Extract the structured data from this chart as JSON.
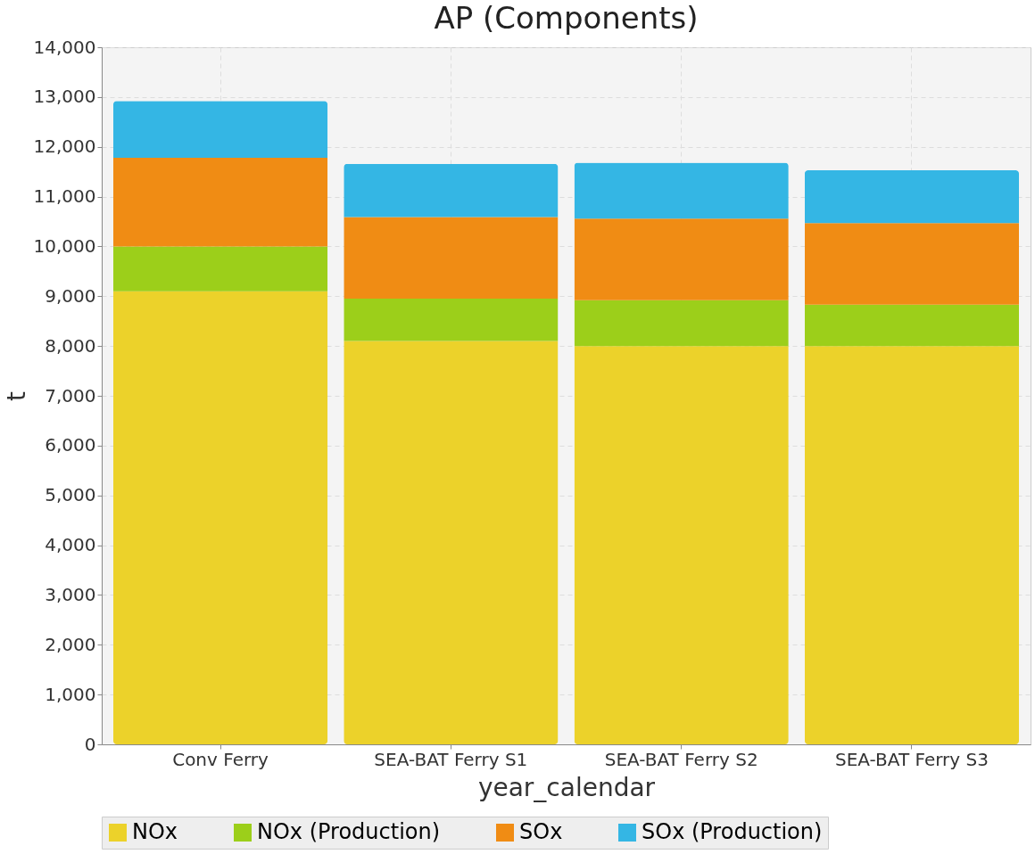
{
  "chart_data": {
    "type": "bar",
    "title": "AP (Components)",
    "xlabel": "year_calendar",
    "ylabel": "t",
    "stacked": true,
    "categories": [
      "Conv Ferry",
      "SEA-BAT Ferry S1",
      "SEA-BAT Ferry S2",
      "SEA-BAT Ferry S3"
    ],
    "series": [
      {
        "name": "NOx",
        "color": "#ecd22a",
        "values": [
          9100,
          8100,
          8000,
          8000
        ]
      },
      {
        "name": "NOx (Production)",
        "color": "#9ccf1a",
        "values": [
          900,
          850,
          920,
          830
        ]
      },
      {
        "name": "SOx",
        "color": "#f08c14",
        "values": [
          1780,
          1640,
          1640,
          1640
        ]
      },
      {
        "name": "SOx (Production)",
        "color": "#34b6e4",
        "values": [
          1140,
          1070,
          1120,
          1060
        ]
      }
    ],
    "ylim": [
      0,
      14000
    ],
    "yticks": [
      0,
      {
        "value": 1000,
        "label": "1,000"
      },
      {
        "value": 2000,
        "label": "2,000"
      },
      {
        "value": 3000,
        "label": "3,000"
      },
      {
        "value": 4000,
        "label": "4,000"
      },
      {
        "value": 5000,
        "label": "5,000"
      },
      {
        "value": 6000,
        "label": "6,000"
      },
      {
        "value": 7000,
        "label": "7,000"
      },
      {
        "value": 8000,
        "label": "8,000"
      },
      {
        "value": 9000,
        "label": "9,000"
      },
      {
        "value": 10000,
        "label": "10,000"
      },
      {
        "value": 11000,
        "label": "11,000"
      },
      {
        "value": 12000,
        "label": "12,000"
      },
      {
        "value": 13000,
        "label": "13,000"
      },
      {
        "value": 14000,
        "label": "14,000"
      }
    ],
    "grid": true,
    "legend": "bottom"
  }
}
